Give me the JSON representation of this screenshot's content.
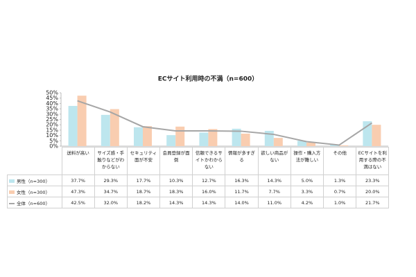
{
  "chart_data": {
    "type": "bar_line_table",
    "title": "ECサイト利用時の不満（n=600）",
    "categories": [
      "送料が高い",
      "サイズ感・手触りなどがわからない",
      "セキュリティ面が不安",
      "会員登録が面倒",
      "信頼できるサイトかわからない",
      "情報が多すぎる",
      "欲しい商品がない",
      "操作・購入方法が難しい",
      "その他",
      "ECサイトを利用する際の不満はない"
    ],
    "series": [
      {
        "name": "男性（n=300）",
        "type": "bar",
        "color": "#bde6ee",
        "values": [
          37.7,
          29.3,
          17.7,
          10.3,
          12.7,
          16.3,
          14.3,
          5.0,
          1.3,
          23.3
        ],
        "value_labels": [
          "37.7%",
          "29.3%",
          "17.7%",
          "10.3%",
          "12.7%",
          "16.3%",
          "14.3%",
          "5.0%",
          "1.3%",
          "23.3%"
        ]
      },
      {
        "name": "女性（n=300）",
        "type": "bar",
        "color": "#f9cdb0",
        "values": [
          47.3,
          34.7,
          18.7,
          18.3,
          16.0,
          11.7,
          7.7,
          3.3,
          0.7,
          20.0
        ],
        "value_labels": [
          "47.3%",
          "34.7%",
          "18.7%",
          "18.3%",
          "16.0%",
          "11.7%",
          "7.7%",
          "3.3%",
          "0.7%",
          "20.0%"
        ]
      },
      {
        "name": "全体（n=600）",
        "type": "line",
        "color": "#a6a6a6",
        "values": [
          42.5,
          32.0,
          18.2,
          14.3,
          14.3,
          14.0,
          11.0,
          4.2,
          1.0,
          21.7
        ],
        "value_labels": [
          "42.5%",
          "32.0%",
          "18.2%",
          "14.3%",
          "14.3%",
          "14.0%",
          "11.0%",
          "4.2%",
          "1.0%",
          "21.7%"
        ]
      }
    ],
    "ylim": [
      0,
      50
    ],
    "yticks": [
      {
        "value": 0,
        "label": "0%"
      },
      {
        "value": 5,
        "label": "5%"
      },
      {
        "value": 10,
        "label": "10%"
      },
      {
        "value": 15,
        "label": "15%"
      },
      {
        "value": 20,
        "label": "20%"
      },
      {
        "value": 25,
        "label": "25%"
      },
      {
        "value": 30,
        "label": "30%"
      },
      {
        "value": 35,
        "label": "35%"
      },
      {
        "value": 40,
        "label": "40%"
      },
      {
        "value": 45,
        "label": "45%"
      },
      {
        "value": 50,
        "label": "50%"
      }
    ]
  }
}
